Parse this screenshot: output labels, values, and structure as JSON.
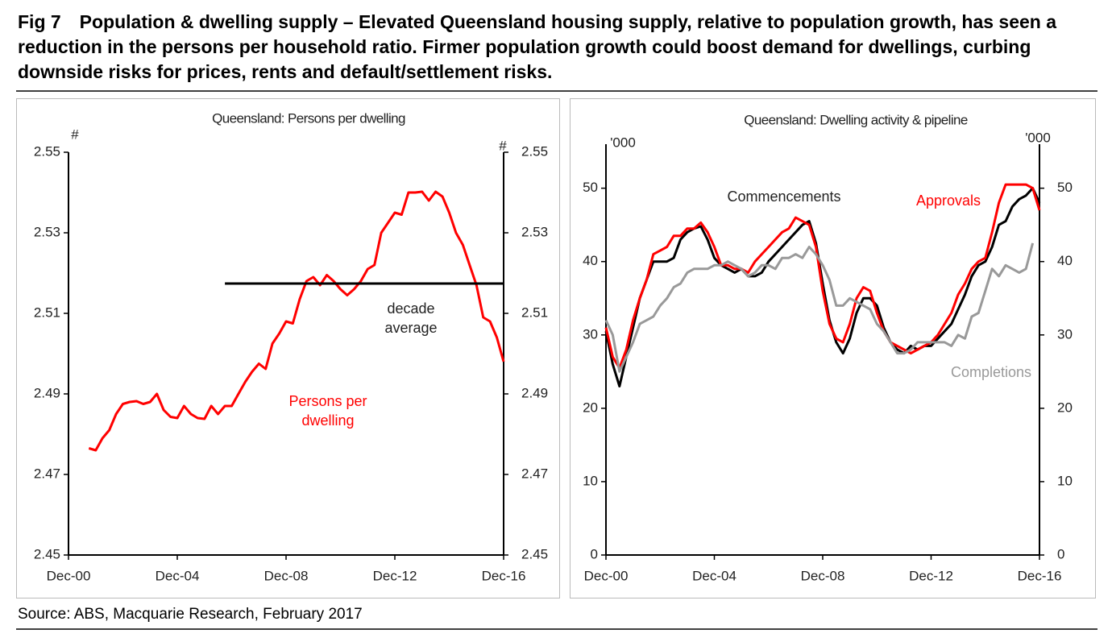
{
  "figure": {
    "title": "Fig 7 Population & dwelling supply – Elevated Queensland housing supply, relative to population growth, has seen a reduction in the persons per household ratio. Firmer population growth could boost demand for dwellings, curbing downside risks for prices, rents and default/settlement risks.",
    "source": "Source: ABS, Macquarie Research, February 2017"
  },
  "chart_data": [
    {
      "type": "line",
      "title": "Queensland: Persons per dwelling",
      "ylabel": "#",
      "y2label": "#",
      "xlim": [
        0,
        64
      ],
      "xticks": [
        {
          "value": 0,
          "label": "Dec-00"
        },
        {
          "value": 16,
          "label": "Dec-04"
        },
        {
          "value": 32,
          "label": "Dec-08"
        },
        {
          "value": 48,
          "label": "Dec-12"
        },
        {
          "value": 64,
          "label": "Dec-16"
        }
      ],
      "ylim": [
        2.45,
        2.55
      ],
      "yticks": [
        2.45,
        2.47,
        2.49,
        2.51,
        2.53,
        2.55
      ],
      "y2lim": [
        2.45,
        2.55
      ],
      "y2ticks": [
        2.45,
        2.47,
        2.49,
        2.51,
        2.53,
        2.55
      ],
      "series": [
        {
          "name": "Persons per dwelling",
          "color": "#ff0000",
          "x": [
            3,
            4,
            5,
            6,
            7,
            8,
            9,
            10,
            11,
            12,
            13,
            14,
            15,
            16,
            17,
            18,
            19,
            20,
            21,
            22,
            23,
            24,
            25,
            26,
            27,
            28,
            29,
            30,
            31,
            32,
            33,
            34,
            35,
            36,
            37,
            38,
            39,
            40,
            41,
            42,
            43,
            44,
            45,
            46,
            47,
            48,
            49,
            50,
            51,
            52,
            53,
            54,
            55,
            56,
            57,
            58,
            59,
            60,
            61,
            62,
            63,
            64
          ],
          "values": [
            2.4765,
            2.476,
            2.479,
            2.481,
            2.485,
            2.4875,
            2.488,
            2.4882,
            2.4875,
            2.488,
            2.49,
            2.486,
            2.4843,
            2.484,
            2.487,
            2.485,
            2.484,
            2.4838,
            2.487,
            2.485,
            2.487,
            2.487,
            2.49,
            2.493,
            2.4955,
            2.4975,
            2.4962,
            2.5025,
            2.505,
            2.508,
            2.5075,
            2.5135,
            2.518,
            2.519,
            2.517,
            2.5195,
            2.518,
            2.516,
            2.5145,
            2.516,
            2.518,
            2.521,
            2.522,
            2.53,
            2.5325,
            2.535,
            2.5345,
            2.54,
            2.54,
            2.5402,
            2.538,
            2.5402,
            2.539,
            2.535,
            2.53,
            2.527,
            2.522,
            2.517,
            2.509,
            2.508,
            2.504,
            2.498
          ]
        },
        {
          "name": "decade average",
          "color": "#000000",
          "x": [
            23,
            64
          ],
          "values": [
            2.5174,
            2.5174
          ]
        }
      ]
    },
    {
      "type": "line",
      "title": "Queensland: Dwelling activity & pipeline",
      "ylabel": "'000",
      "y2label": "'000",
      "xlim": [
        0,
        64
      ],
      "xticks": [
        {
          "value": 0,
          "label": "Dec-00"
        },
        {
          "value": 16,
          "label": "Dec-04"
        },
        {
          "value": 32,
          "label": "Dec-08"
        },
        {
          "value": 48,
          "label": "Dec-12"
        },
        {
          "value": 64,
          "label": "Dec-16"
        }
      ],
      "ylim": [
        0,
        56
      ],
      "yticks": [
        0,
        10,
        20,
        30,
        40,
        50
      ],
      "y2lim": [
        0,
        56
      ],
      "y2ticks": [
        0,
        10,
        20,
        30,
        40,
        50
      ],
      "series": [
        {
          "name": "Commencements",
          "color": "#000000",
          "x": [
            0,
            1,
            2,
            3,
            4,
            5,
            6,
            7,
            8,
            9,
            10,
            11,
            12,
            13,
            14,
            15,
            16,
            17,
            18,
            19,
            20,
            21,
            22,
            23,
            24,
            25,
            26,
            27,
            28,
            29,
            30,
            31,
            32,
            33,
            34,
            35,
            36,
            37,
            38,
            39,
            40,
            41,
            42,
            43,
            44,
            45,
            46,
            47,
            48,
            49,
            50,
            51,
            52,
            53,
            54,
            55,
            56,
            57,
            58,
            59,
            60,
            61,
            62,
            63,
            64
          ],
          "values": [
            30.5,
            26,
            23,
            27,
            31,
            35,
            37.5,
            40,
            40,
            40,
            40.5,
            43,
            44,
            44.5,
            44.8,
            43,
            40.5,
            39.5,
            39,
            38.5,
            39,
            38,
            38,
            38.5,
            40,
            41,
            42,
            43,
            44,
            45,
            45.5,
            42.5,
            37,
            32,
            29,
            27.5,
            29.5,
            33,
            35,
            35,
            34,
            31,
            29,
            28,
            27.5,
            28.5,
            28,
            28.5,
            28.5,
            29.5,
            30.5,
            31.5,
            33.5,
            35.5,
            38,
            39.5,
            40,
            42,
            45,
            45.5,
            47.5,
            48.5,
            49,
            50,
            48
          ]
        },
        {
          "name": "Approvals",
          "color": "#ff0000",
          "x": [
            0,
            1,
            2,
            3,
            4,
            5,
            6,
            7,
            8,
            9,
            10,
            11,
            12,
            13,
            14,
            15,
            16,
            17,
            18,
            19,
            20,
            21,
            22,
            23,
            24,
            25,
            26,
            27,
            28,
            29,
            30,
            31,
            32,
            33,
            34,
            35,
            36,
            37,
            38,
            39,
            40,
            41,
            42,
            43,
            44,
            45,
            46,
            47,
            48,
            49,
            50,
            51,
            52,
            53,
            54,
            55,
            56,
            57,
            58,
            59,
            60,
            61,
            62,
            63,
            64
          ],
          "values": [
            31,
            27,
            25.5,
            28,
            32,
            35,
            37.5,
            41,
            41.5,
            42,
            43.5,
            43.5,
            44.5,
            44.5,
            45.3,
            44,
            42,
            39.5,
            39.5,
            39,
            39,
            38.5,
            40,
            41,
            42,
            43,
            44,
            44.5,
            46,
            45.5,
            45,
            42,
            36,
            31.5,
            29.5,
            29,
            31.5,
            35,
            36.5,
            36,
            33,
            30.5,
            29,
            28.5,
            28,
            27.5,
            28,
            28.5,
            29,
            30,
            31.5,
            33,
            35.5,
            37,
            39,
            40,
            40.5,
            44,
            48,
            50.5,
            50.5,
            50.5,
            50.5,
            50,
            47
          ]
        },
        {
          "name": "Completions",
          "color": "#999999",
          "x": [
            0,
            1,
            2,
            3,
            4,
            5,
            6,
            7,
            8,
            9,
            10,
            11,
            12,
            13,
            14,
            15,
            16,
            17,
            18,
            19,
            20,
            21,
            22,
            23,
            24,
            25,
            26,
            27,
            28,
            29,
            30,
            31,
            32,
            33,
            34,
            35,
            36,
            37,
            38,
            39,
            40,
            41,
            42,
            43,
            44,
            45,
            46,
            47,
            48,
            49,
            50,
            51,
            52,
            53,
            54,
            55,
            56,
            57,
            58,
            59,
            60,
            61,
            62,
            63
          ],
          "values": [
            32,
            30,
            25,
            27,
            29,
            31.5,
            32,
            32.5,
            34,
            35,
            36.5,
            37,
            38.5,
            39,
            39,
            39,
            39.5,
            39.5,
            40,
            39.5,
            39,
            38,
            38.5,
            39.5,
            39.5,
            39,
            40.5,
            40.5,
            41,
            40.5,
            42,
            41,
            39.5,
            37.5,
            34,
            34,
            35,
            34.5,
            34,
            33.5,
            31.5,
            30.5,
            29,
            27.5,
            27.5,
            28,
            29,
            29,
            29,
            29,
            29,
            28.5,
            30,
            29.5,
            32.5,
            33,
            36,
            39,
            38,
            39.5,
            39,
            38.5,
            39,
            42.5
          ]
        }
      ]
    }
  ]
}
